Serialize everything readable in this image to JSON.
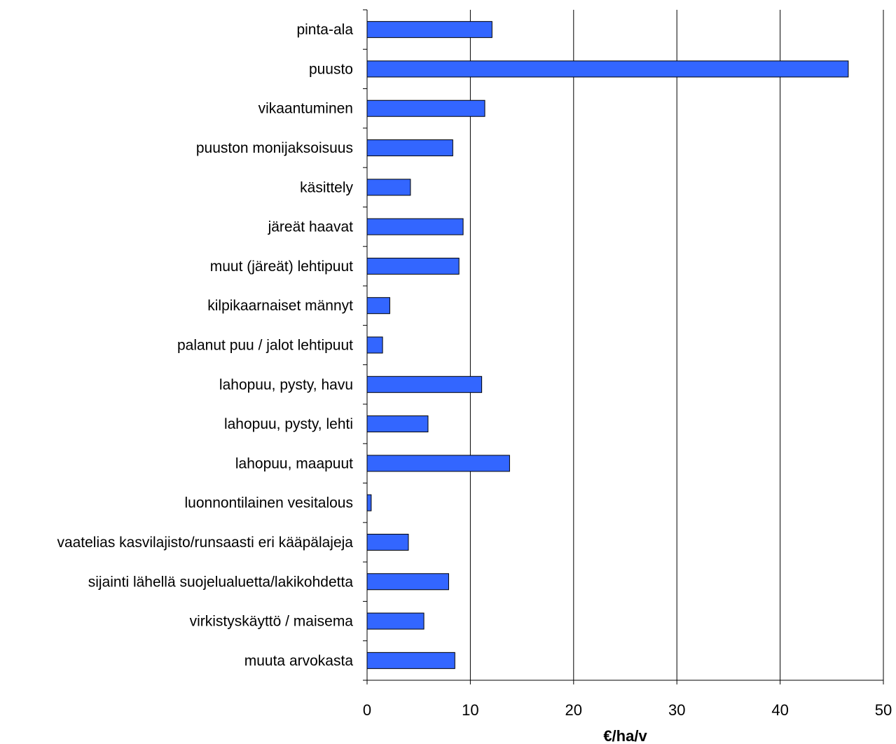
{
  "chart_data": {
    "type": "bar",
    "orientation": "horizontal",
    "categories": [
      "pinta-ala",
      "puusto",
      "vikaantuminen",
      "puuston monijaksoisuus",
      "käsittely",
      "järeät haavat",
      "muut (järeät) lehtipuut",
      "kilpikaarnaiset männyt",
      "palanut puu / jalot lehtipuut",
      "lahopuu, pysty, havu",
      "lahopuu, pysty, lehti",
      "lahopuu, maapuut",
      "luonnontilainen vesitalous",
      "vaatelias kasvilajisto/runsaasti eri kääpälajeja",
      "sijainti lähellä suojelualuetta/lakikohdetta",
      "virkistyskäyttö / maisema",
      "muuta arvokasta"
    ],
    "values": [
      12.1,
      46.6,
      11.4,
      8.3,
      4.2,
      9.3,
      8.9,
      2.2,
      1.5,
      11.1,
      5.9,
      13.8,
      0.4,
      4.0,
      7.9,
      5.5,
      8.5
    ],
    "x_ticks": [
      "0",
      "10",
      "20",
      "30",
      "40",
      "50"
    ],
    "xlim": [
      0,
      50
    ],
    "xlabel": "€/ha/v",
    "ylabel": "",
    "title": "",
    "grid": "vertical",
    "legend": "none",
    "colors": {
      "bar_fill": "#3366ff",
      "bar_stroke": "#000000",
      "grid": "#000000",
      "axis": "#000000",
      "background": "#ffffff"
    }
  }
}
